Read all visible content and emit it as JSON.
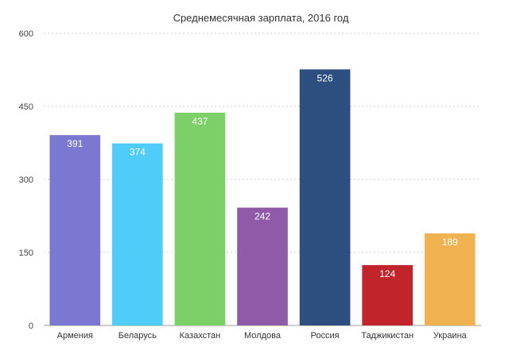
{
  "chart_data": {
    "type": "bar",
    "title": "Среднемесячная зарплата, 2016 год",
    "xlabel": "",
    "ylabel": "",
    "ylim": [
      0,
      600
    ],
    "yticks": [
      0,
      150,
      300,
      450,
      600
    ],
    "grid": true,
    "legend": "none",
    "categories": [
      "Армения",
      "Беларусь",
      "Казахстан",
      "Молдова",
      "Россия",
      "Таджикистан",
      "Украина"
    ],
    "values": [
      391,
      374,
      437,
      242,
      526,
      124,
      189
    ],
    "colors": [
      "#7a78d0",
      "#4fcdf8",
      "#7dd067",
      "#8f5ba8",
      "#2d4f80",
      "#c2242c",
      "#f0b150"
    ]
  }
}
